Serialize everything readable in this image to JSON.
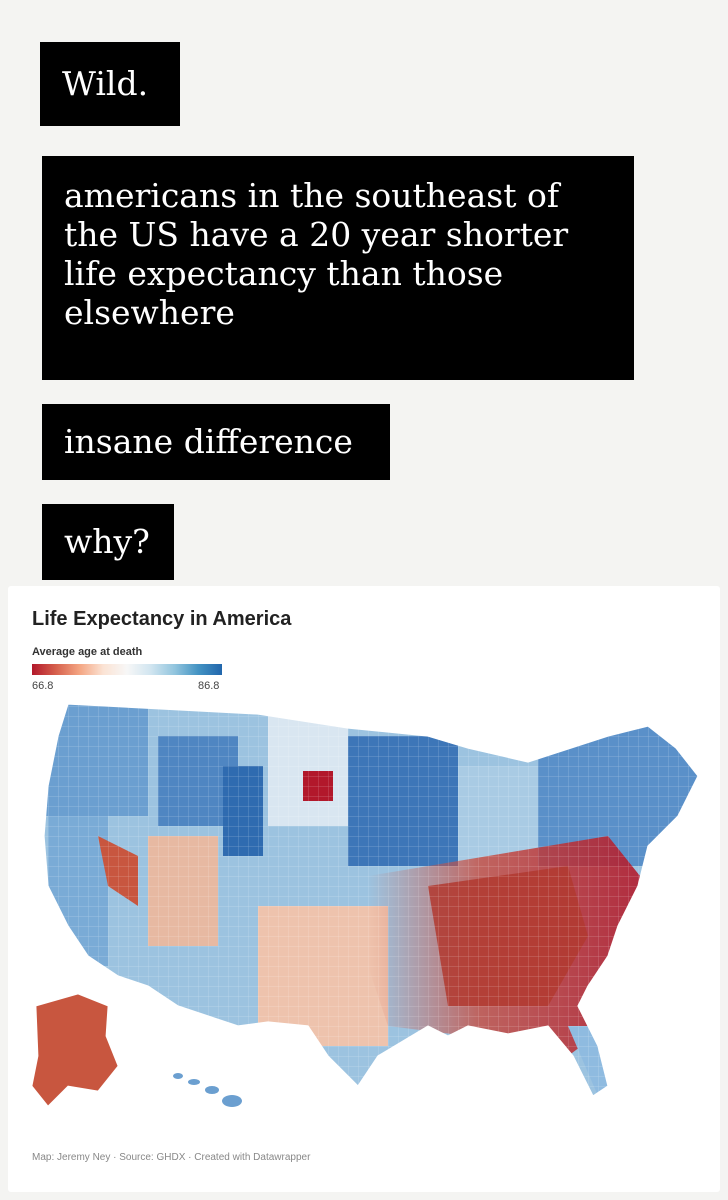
{
  "captions": {
    "wild": "Wild.",
    "main_lines": [
      "americans in the southeast of",
      "the US have a 20 year shorter",
      "life expectancy than those",
      "elsewhere"
    ],
    "insane": "insane difference",
    "why": "why?"
  },
  "map": {
    "title": "Life Expectancy in America",
    "subtitle": "Average age at death",
    "legend": {
      "min": "66.8",
      "max": "86.8"
    },
    "footer": "Map: Jeremy Ney · Source: GHDX · Created with Datawrapper",
    "colors": {
      "low": "#b2182b",
      "mid": "#f7f7f7",
      "high": "#2166ac"
    }
  }
}
